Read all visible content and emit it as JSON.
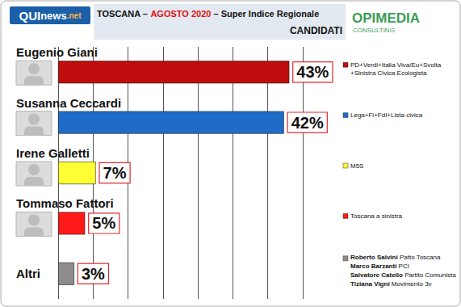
{
  "header": {
    "logo": [
      "QUI",
      "news",
      ".net"
    ],
    "highlight": "AGOSTO 2020",
    "brand": "OPIMEDIA",
    "brand_sub": "CONSULTING"
  },
  "chart_data": {
    "type": "bar",
    "orientation": "horizontal",
    "title": "TOSCANA – AGOSTO 2020 – Super Indice Regionale",
    "subtitle": "CANDIDATI",
    "categories": [
      "Eugenio Giani",
      "Susanna Ceccardi",
      "Irene Galletti",
      "Tommaso Fattori",
      "Altri"
    ],
    "values": [
      43,
      42,
      7,
      5,
      3
    ],
    "value_labels": [
      "43%",
      "42%",
      "7%",
      "5%",
      "3%"
    ],
    "colors": [
      "#c00d0d",
      "#1f6cc8",
      "#ffff33",
      "#ff1a1a",
      "#8c8c8c"
    ],
    "parties": [
      "PD+Verdi+Italia Viva/Eu+Svolta +Sinistra Civica Ecologista",
      "Lega+Fi+FdI+Lista civica",
      "M5S",
      "Toscana a sinistra",
      null
    ],
    "others": [
      {
        "name": "Roberto Salvini",
        "party": "Patto Toscana"
      },
      {
        "name": "Marco Barzanti",
        "party": "PCI"
      },
      {
        "name": "Salvatore Catello",
        "party": "Partito Comunista"
      },
      {
        "name": "Tiziana Vigni",
        "party": "Movimento 3v"
      }
    ],
    "xlim": [
      0,
      45.5
    ],
    "xticks": [
      0,
      6.5,
      13,
      19.5,
      26,
      32.5,
      39,
      45.5
    ],
    "grid": true,
    "data_labels": true,
    "tick_labels": "y"
  }
}
